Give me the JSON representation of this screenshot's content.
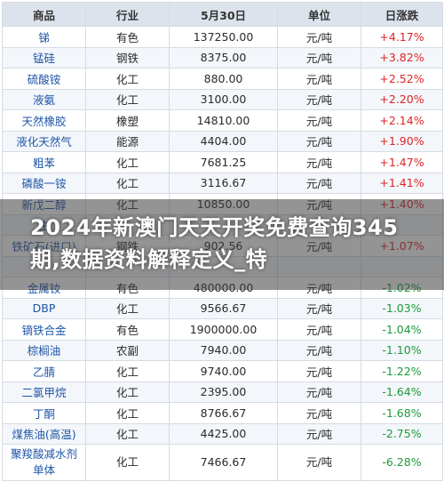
{
  "table": {
    "headers": [
      "商品",
      "行业",
      "5月30日",
      "单位",
      "日涨跌"
    ],
    "rows": [
      {
        "name": "锑",
        "industry": "有色",
        "price": "137250.00",
        "unit": "元/吨",
        "change": "+4.17%",
        "dir": "up"
      },
      {
        "name": "锰硅",
        "industry": "钢铁",
        "price": "8375.00",
        "unit": "元/吨",
        "change": "+3.82%",
        "dir": "up"
      },
      {
        "name": "硫酸铵",
        "industry": "化工",
        "price": "880.00",
        "unit": "元/吨",
        "change": "+2.52%",
        "dir": "up"
      },
      {
        "name": "液氨",
        "industry": "化工",
        "price": "3100.00",
        "unit": "元/吨",
        "change": "+2.20%",
        "dir": "up"
      },
      {
        "name": "天然橡胶",
        "industry": "橡塑",
        "price": "14810.00",
        "unit": "元/吨",
        "change": "+2.14%",
        "dir": "up"
      },
      {
        "name": "液化天然气",
        "industry": "能源",
        "price": "4404.00",
        "unit": "元/吨",
        "change": "+1.90%",
        "dir": "up"
      },
      {
        "name": "粗苯",
        "industry": "化工",
        "price": "7681.25",
        "unit": "元/吨",
        "change": "+1.47%",
        "dir": "up"
      },
      {
        "name": "磷酸一铵",
        "industry": "化工",
        "price": "3116.67",
        "unit": "元/吨",
        "change": "+1.41%",
        "dir": "up"
      },
      {
        "name": "新戊二醇",
        "industry": "化工",
        "price": "10850.00",
        "unit": "元/吨",
        "change": "+1.40%",
        "dir": "up"
      },
      {
        "name": "生",
        "industry": "",
        "price": "",
        "unit": "",
        "change": "",
        "dir": "up"
      },
      {
        "name": "铁矿石(进口)",
        "industry": "钢铁",
        "price": "902.56",
        "unit": "元/吨",
        "change": "+1.07%",
        "dir": "up"
      },
      {
        "name": "",
        "industry": "",
        "price": "",
        "unit": "",
        "change": "",
        "dir": "down"
      },
      {
        "name": "金属钕",
        "industry": "有色",
        "price": "480000.00",
        "unit": "元/吨",
        "change": "-1.02%",
        "dir": "down"
      },
      {
        "name": "DBP",
        "industry": "化工",
        "price": "9566.67",
        "unit": "元/吨",
        "change": "-1.03%",
        "dir": "down"
      },
      {
        "name": "镝铁合金",
        "industry": "有色",
        "price": "1900000.00",
        "unit": "元/吨",
        "change": "-1.04%",
        "dir": "down"
      },
      {
        "name": "棕榈油",
        "industry": "农副",
        "price": "7940.00",
        "unit": "元/吨",
        "change": "-1.10%",
        "dir": "down"
      },
      {
        "name": "乙腈",
        "industry": "化工",
        "price": "9740.00",
        "unit": "元/吨",
        "change": "-1.22%",
        "dir": "down"
      },
      {
        "name": "二氯甲烷",
        "industry": "化工",
        "price": "2395.00",
        "unit": "元/吨",
        "change": "-1.64%",
        "dir": "down"
      },
      {
        "name": "丁酮",
        "industry": "化工",
        "price": "8766.67",
        "unit": "元/吨",
        "change": "-1.68%",
        "dir": "down"
      },
      {
        "name": "煤焦油(高温)",
        "industry": "化工",
        "price": "4425.00",
        "unit": "元/吨",
        "change": "-2.75%",
        "dir": "down"
      },
      {
        "name": "聚羧酸减水剂单体",
        "industry": "化工",
        "price": "7466.67",
        "unit": "元/吨",
        "change": "-6.28%",
        "dir": "down"
      }
    ]
  },
  "overlay": {
    "text": "2024年新澳门天天开奖免费查询345期,数据资料解释定义_特"
  },
  "colors": {
    "up": "#e02424",
    "down": "#1e9a3a",
    "name": "#1f56a8",
    "header_bg": "#dde3ec"
  }
}
